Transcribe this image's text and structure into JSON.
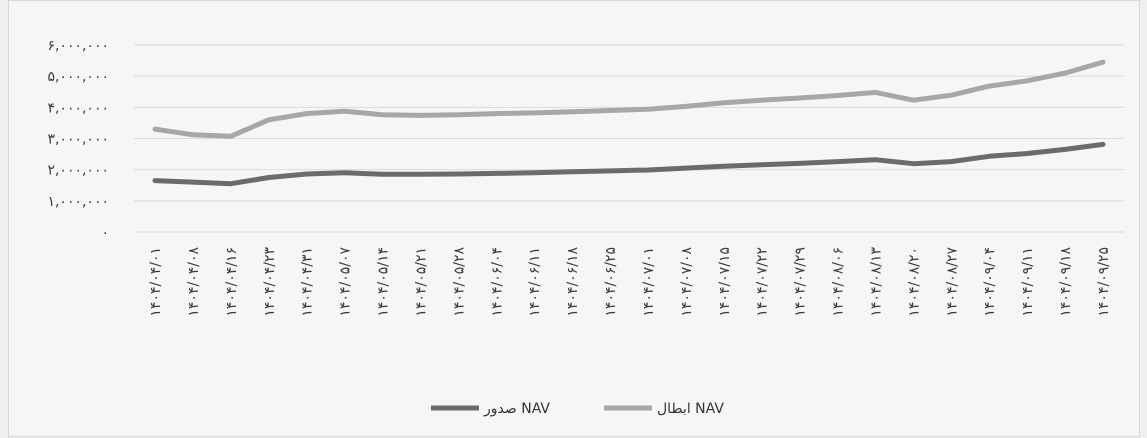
{
  "chart_data": {
    "type": "line",
    "title": "",
    "xlabel": "",
    "ylabel": "",
    "ylim": [
      0,
      6000000
    ],
    "y_ticks": [
      "۰",
      "۱,۰۰۰,۰۰۰",
      "۲,۰۰۰,۰۰۰",
      "۳,۰۰۰,۰۰۰",
      "۴,۰۰۰,۰۰۰",
      "۵,۰۰۰,۰۰۰",
      "۶,۰۰۰,۰۰۰"
    ],
    "y_tick_values": [
      0,
      1000000,
      2000000,
      3000000,
      4000000,
      5000000,
      6000000
    ],
    "x": [
      "۱۴۰۴/۰۴/۰۱",
      "۱۴۰۴/۰۴/۰۸",
      "۱۴۰۴/۰۴/۱۶",
      "۱۴۰۴/۰۴/۲۳",
      "۱۴۰۴/۰۴/۳۱",
      "۱۴۰۴/۰۵/۰۷",
      "۱۴۰۴/۰۵/۱۴",
      "۱۴۰۴/۰۵/۲۱",
      "۱۴۰۴/۰۵/۲۸",
      "۱۴۰۴/۰۶/۰۴",
      "۱۴۰۴/۰۶/۱۱",
      "۱۴۰۴/۰۶/۱۸",
      "۱۴۰۴/۰۶/۲۵",
      "۱۴۰۴/۰۷/۰۱",
      "۱۴۰۴/۰۷/۰۸",
      "۱۴۰۴/۰۷/۱۵",
      "۱۴۰۴/۰۷/۲۲",
      "۱۴۰۴/۰۷/۲۹",
      "۱۴۰۴/۰۸/۰۶",
      "۱۴۰۴/۰۸/۱۳",
      "۱۴۰۴/۰۸/۲۰",
      "۱۴۰۴/۰۸/۲۷",
      "۱۴۰۴/۰۹/۰۴",
      "۱۴۰۴/۰۹/۱۱",
      "۱۴۰۴/۰۹/۱۸",
      "۱۴۰۴/۰۹/۲۵"
    ],
    "series": [
      {
        "name": "ابطال NAV",
        "color": "#a7a7a5",
        "values": [
          3300000,
          3120000,
          3070000,
          3600000,
          3800000,
          3880000,
          3760000,
          3740000,
          3760000,
          3800000,
          3820000,
          3860000,
          3900000,
          3940000,
          4030000,
          4150000,
          4230000,
          4300000,
          4380000,
          4480000,
          4230000,
          4390000,
          4680000,
          4850000,
          5100000,
          5450000
        ]
      },
      {
        "name": "صدور NAV",
        "color": "#6b6b6b",
        "values": [
          1650000,
          1600000,
          1550000,
          1750000,
          1860000,
          1900000,
          1850000,
          1850000,
          1860000,
          1880000,
          1900000,
          1930000,
          1960000,
          1990000,
          2050000,
          2110000,
          2160000,
          2200000,
          2260000,
          2320000,
          2190000,
          2260000,
          2430000,
          2520000,
          2650000,
          2810000
        ]
      }
    ],
    "legend": {
      "placement": "bottom",
      "entries": [
        "صدور NAV",
        "ابطال NAV"
      ]
    },
    "grid": true
  }
}
